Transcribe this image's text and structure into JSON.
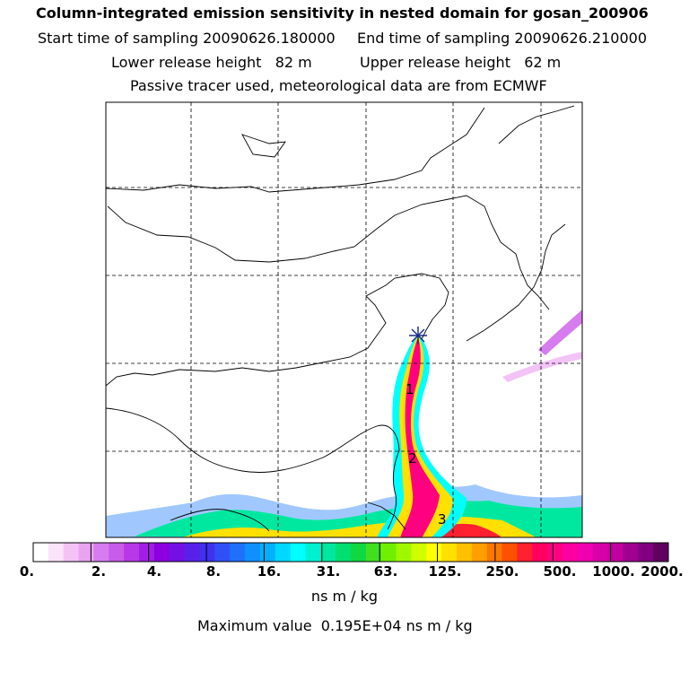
{
  "title": "Column-integrated emission sensitivity in nested domain for gosan_200906",
  "sampling": {
    "start": "Start time of sampling 20090626.180000",
    "end": "End time of sampling 20090626.210000"
  },
  "release": {
    "lower": "Lower release height   82 m",
    "upper": "Upper release height   62 m"
  },
  "note": "Passive tracer used, meteorological data are from ECMWF",
  "plume_labels": [
    "1",
    "2",
    "3"
  ],
  "colorbar": {
    "ticks": [
      "0.",
      "2.",
      "4.",
      "8.",
      "16.",
      "31.",
      "63.",
      "125.",
      "250.",
      "500.",
      "1000.",
      "2000."
    ],
    "colors": [
      "#ffffff",
      "#fbe3fb",
      "#f3c3f6",
      "#e9a3f1",
      "#d67cee",
      "#c75ce9",
      "#b738e6",
      "#a21ee4",
      "#8c00e0",
      "#7410e6",
      "#5a20ea",
      "#4030f0",
      "#3050f6",
      "#2070fa",
      "#1090ff",
      "#00b0ff",
      "#00d8ff",
      "#00ffff",
      "#00f0d0",
      "#00e8a0",
      "#00e070",
      "#10d840",
      "#40e020",
      "#70f000",
      "#a0f800",
      "#d0ff00",
      "#ffff00",
      "#ffe000",
      "#ffc000",
      "#ffa000",
      "#ff7800",
      "#ff5000",
      "#ff2030",
      "#ff0060",
      "#ff0080",
      "#ff00a0",
      "#f000b0",
      "#d800a8",
      "#c000a0",
      "#a00090",
      "#800080",
      "#600060"
    ],
    "unit": "ns m / kg",
    "max_value": "Maximum value  0.195E+04 ns m / kg"
  },
  "receptor_marker": "star",
  "colors": {
    "plume_core": "#ff0080",
    "plume_mid": "#ffa000",
    "plume_edge": "#00ffff"
  }
}
